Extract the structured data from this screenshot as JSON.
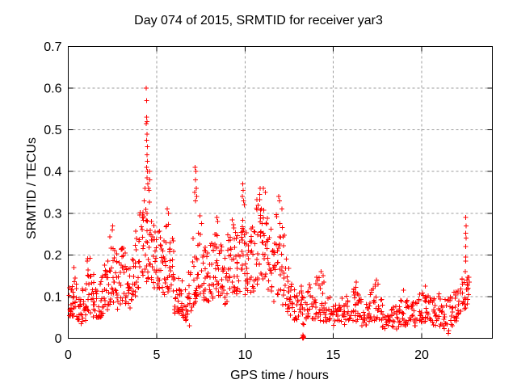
{
  "title": "Day 074 of 2015, SRMTID for receiver yar3",
  "chart_data": {
    "type": "scatter",
    "title": "Day 074 of 2015, SRMTID for receiver yar3",
    "xlabel": "GPS time / hours",
    "ylabel": "SRMTID / TECUs",
    "xlim": [
      0,
      24
    ],
    "ylim": [
      0,
      0.7
    ],
    "xtick_values": [
      0,
      5,
      10,
      15,
      20
    ],
    "xtick_labels": [
      "0",
      "5",
      "10",
      "15",
      "20"
    ],
    "ytick_values": [
      0,
      0.1,
      0.2,
      0.3,
      0.4,
      0.5,
      0.6,
      0.7
    ],
    "ytick_labels": [
      "0",
      "0.1",
      "0.2",
      "0.3",
      "0.4",
      "0.5",
      "0.6",
      "0.7"
    ],
    "grid": true,
    "legend": "none",
    "marker": "plus",
    "marker_color": "#ff0000",
    "grid_color": "#9c9c9c",
    "axis_color": "#000000",
    "series_name": "SRMTID",
    "bin_width_hours": 0.25,
    "band_bins": [
      [
        0.0,
        0.05,
        0.13,
        16
      ],
      [
        0.25,
        0.05,
        0.16,
        16
      ],
      [
        0.5,
        0.03,
        0.1,
        14
      ],
      [
        0.75,
        0.04,
        0.12,
        14
      ],
      [
        1.0,
        0.06,
        0.2,
        16
      ],
      [
        1.25,
        0.05,
        0.16,
        14
      ],
      [
        1.5,
        0.04,
        0.12,
        14
      ],
      [
        1.75,
        0.05,
        0.15,
        14
      ],
      [
        2.0,
        0.06,
        0.19,
        16
      ],
      [
        2.25,
        0.08,
        0.25,
        16
      ],
      [
        2.5,
        0.08,
        0.23,
        16
      ],
      [
        2.75,
        0.06,
        0.19,
        14
      ],
      [
        3.0,
        0.08,
        0.22,
        16
      ],
      [
        3.25,
        0.07,
        0.17,
        14
      ],
      [
        3.5,
        0.09,
        0.2,
        14
      ],
      [
        3.75,
        0.1,
        0.26,
        16
      ],
      [
        4.0,
        0.12,
        0.31,
        16
      ],
      [
        4.25,
        0.13,
        0.34,
        14
      ],
      [
        4.5,
        0.14,
        0.34,
        16
      ],
      [
        4.75,
        0.12,
        0.28,
        16
      ],
      [
        5.0,
        0.12,
        0.27,
        16
      ],
      [
        5.25,
        0.1,
        0.24,
        14
      ],
      [
        5.5,
        0.11,
        0.29,
        16
      ],
      [
        5.75,
        0.1,
        0.24,
        14
      ],
      [
        6.0,
        0.06,
        0.19,
        14
      ],
      [
        6.25,
        0.05,
        0.14,
        14
      ],
      [
        6.5,
        0.04,
        0.12,
        14
      ],
      [
        6.75,
        0.06,
        0.16,
        14
      ],
      [
        7.0,
        0.08,
        0.24,
        14
      ],
      [
        7.25,
        0.1,
        0.3,
        16
      ],
      [
        7.5,
        0.09,
        0.28,
        14
      ],
      [
        7.75,
        0.08,
        0.21,
        14
      ],
      [
        8.0,
        0.09,
        0.24,
        16
      ],
      [
        8.25,
        0.11,
        0.27,
        16
      ],
      [
        8.5,
        0.1,
        0.23,
        14
      ],
      [
        8.75,
        0.08,
        0.2,
        14
      ],
      [
        9.0,
        0.09,
        0.25,
        16
      ],
      [
        9.25,
        0.11,
        0.29,
        16
      ],
      [
        9.5,
        0.1,
        0.25,
        14
      ],
      [
        9.75,
        0.11,
        0.31,
        16
      ],
      [
        10.0,
        0.1,
        0.28,
        16
      ],
      [
        10.25,
        0.11,
        0.27,
        16
      ],
      [
        10.5,
        0.13,
        0.34,
        16
      ],
      [
        10.75,
        0.14,
        0.35,
        16
      ],
      [
        11.0,
        0.12,
        0.33,
        16
      ],
      [
        11.25,
        0.1,
        0.29,
        14
      ],
      [
        11.5,
        0.08,
        0.24,
        14
      ],
      [
        11.75,
        0.1,
        0.32,
        16
      ],
      [
        12.0,
        0.08,
        0.28,
        14
      ],
      [
        12.25,
        0.06,
        0.2,
        14
      ],
      [
        12.5,
        0.05,
        0.14,
        12
      ],
      [
        12.75,
        0.04,
        0.12,
        12
      ],
      [
        13.0,
        0.05,
        0.13,
        12
      ],
      [
        13.25,
        0.03,
        0.11,
        10
      ],
      [
        13.5,
        0.05,
        0.14,
        12
      ],
      [
        13.75,
        0.04,
        0.11,
        10
      ],
      [
        14.0,
        0.05,
        0.15,
        12
      ],
      [
        14.25,
        0.04,
        0.14,
        12
      ],
      [
        14.5,
        0.04,
        0.11,
        10
      ],
      [
        14.75,
        0.03,
        0.1,
        10
      ],
      [
        15.0,
        0.03,
        0.09,
        10
      ],
      [
        15.25,
        0.03,
        0.1,
        10
      ],
      [
        15.5,
        0.03,
        0.1,
        10
      ],
      [
        15.75,
        0.04,
        0.11,
        10
      ],
      [
        16.0,
        0.04,
        0.12,
        12
      ],
      [
        16.25,
        0.04,
        0.13,
        12
      ],
      [
        16.5,
        0.03,
        0.1,
        10
      ],
      [
        16.75,
        0.03,
        0.09,
        10
      ],
      [
        17.0,
        0.04,
        0.12,
        12
      ],
      [
        17.25,
        0.04,
        0.13,
        12
      ],
      [
        17.5,
        0.03,
        0.1,
        10
      ],
      [
        17.75,
        0.02,
        0.08,
        10
      ],
      [
        18.0,
        0.02,
        0.07,
        10
      ],
      [
        18.25,
        0.02,
        0.08,
        10
      ],
      [
        18.5,
        0.02,
        0.08,
        10
      ],
      [
        18.75,
        0.03,
        0.1,
        12
      ],
      [
        19.0,
        0.03,
        0.11,
        12
      ],
      [
        19.25,
        0.03,
        0.09,
        10
      ],
      [
        19.5,
        0.03,
        0.1,
        10
      ],
      [
        19.75,
        0.04,
        0.11,
        12
      ],
      [
        20.0,
        0.03,
        0.11,
        12
      ],
      [
        20.25,
        0.04,
        0.12,
        12
      ],
      [
        20.5,
        0.03,
        0.1,
        10
      ],
      [
        20.75,
        0.03,
        0.11,
        10
      ],
      [
        21.0,
        0.02,
        0.1,
        10
      ],
      [
        21.25,
        0.02,
        0.1,
        10
      ],
      [
        21.5,
        0.03,
        0.1,
        12
      ],
      [
        21.75,
        0.04,
        0.12,
        12
      ],
      [
        22.0,
        0.05,
        0.13,
        12
      ],
      [
        22.25,
        0.07,
        0.15,
        14
      ],
      [
        22.5,
        0.08,
        0.15,
        8
      ]
    ],
    "outlier_points": [
      [
        0.33,
        0.17
      ],
      [
        2.48,
        0.26
      ],
      [
        2.52,
        0.27
      ],
      [
        4.3,
        0.33
      ],
      [
        4.35,
        0.36
      ],
      [
        4.42,
        0.6
      ],
      [
        4.43,
        0.57
      ],
      [
        4.44,
        0.53
      ],
      [
        4.45,
        0.52
      ],
      [
        4.42,
        0.515
      ],
      [
        4.46,
        0.49
      ],
      [
        4.44,
        0.475
      ],
      [
        4.47,
        0.46
      ],
      [
        4.45,
        0.44
      ],
      [
        4.48,
        0.425
      ],
      [
        4.43,
        0.41
      ],
      [
        4.49,
        0.4
      ],
      [
        4.46,
        0.385
      ],
      [
        4.5,
        0.37
      ],
      [
        4.55,
        0.36
      ],
      [
        4.58,
        0.355
      ],
      [
        4.6,
        0.4
      ],
      [
        4.62,
        0.38
      ],
      [
        5.6,
        0.31
      ],
      [
        5.66,
        0.3
      ],
      [
        6.85,
        0.03
      ],
      [
        7.15,
        0.35
      ],
      [
        7.18,
        0.41
      ],
      [
        7.19,
        0.33
      ],
      [
        7.2,
        0.38
      ],
      [
        7.22,
        0.4
      ],
      [
        7.24,
        0.36
      ],
      [
        7.26,
        0.34
      ],
      [
        8.42,
        0.29
      ],
      [
        8.45,
        0.28
      ],
      [
        9.85,
        0.34
      ],
      [
        9.88,
        0.37
      ],
      [
        9.9,
        0.355
      ],
      [
        9.93,
        0.33
      ],
      [
        9.96,
        0.32
      ],
      [
        10.85,
        0.36
      ],
      [
        11.05,
        0.36
      ],
      [
        11.15,
        0.35
      ],
      [
        11.9,
        0.34
      ],
      [
        11.95,
        0.33
      ],
      [
        12.1,
        0.31
      ],
      [
        13.26,
        0.002
      ],
      [
        13.28,
        0.0
      ],
      [
        13.3,
        0.005
      ],
      [
        13.31,
        0.001
      ],
      [
        13.33,
        0.003
      ],
      [
        13.29,
        0.008
      ],
      [
        14.3,
        0.16
      ],
      [
        14.42,
        0.15
      ],
      [
        16.3,
        0.135
      ],
      [
        17.45,
        0.14
      ],
      [
        17.52,
        0.13
      ],
      [
        18.97,
        0.115
      ],
      [
        20.2,
        0.125
      ],
      [
        21.5,
        0.012
      ],
      [
        21.54,
        0.018
      ],
      [
        22.46,
        0.16
      ],
      [
        22.48,
        0.185
      ],
      [
        22.5,
        0.195
      ],
      [
        22.49,
        0.22
      ],
      [
        22.51,
        0.24
      ],
      [
        22.5,
        0.252
      ],
      [
        22.52,
        0.27
      ],
      [
        22.5,
        0.29
      ],
      [
        22.55,
        0.14
      ],
      [
        22.58,
        0.13
      ],
      [
        22.62,
        0.12
      ],
      [
        22.65,
        0.105
      ]
    ]
  }
}
